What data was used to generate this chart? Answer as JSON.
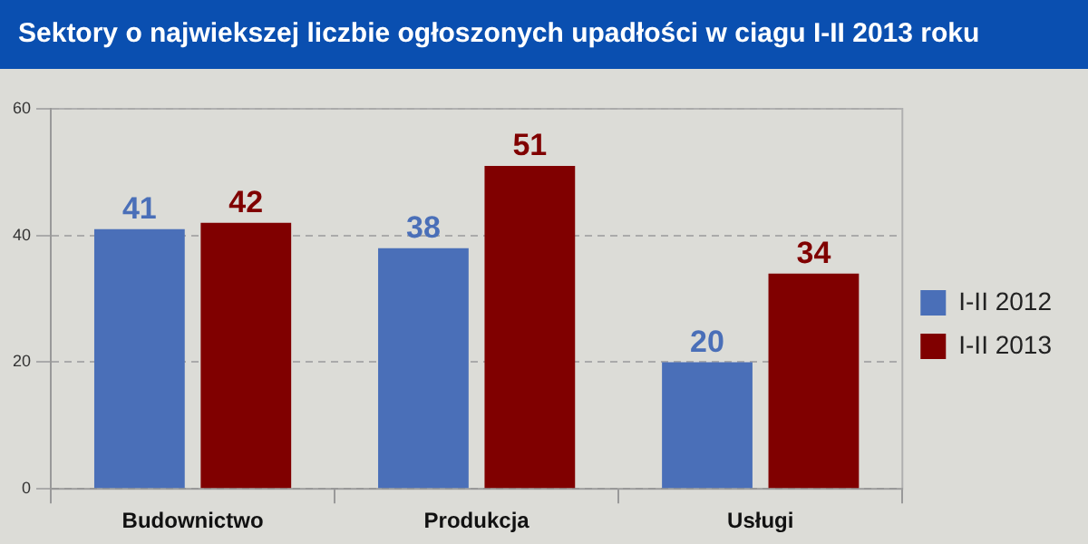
{
  "chart_data": {
    "type": "bar",
    "title": "Sektory o najwiekszej liczbie ogłoszonych upadłości w ciagu I-II 2013 roku",
    "categories": [
      "Budownictwo",
      "Produkcja",
      "Usługi"
    ],
    "series": [
      {
        "name": "I-II 2012",
        "color": "#4a6fb8",
        "values": [
          41,
          38,
          20
        ]
      },
      {
        "name": "I-II 2013",
        "color": "#800000",
        "values": [
          42,
          51,
          34
        ]
      }
    ],
    "ylim": [
      0,
      60
    ],
    "yticks": [
      0,
      20,
      40,
      60
    ],
    "grid": "y",
    "legend": "right",
    "data_labels": true
  }
}
